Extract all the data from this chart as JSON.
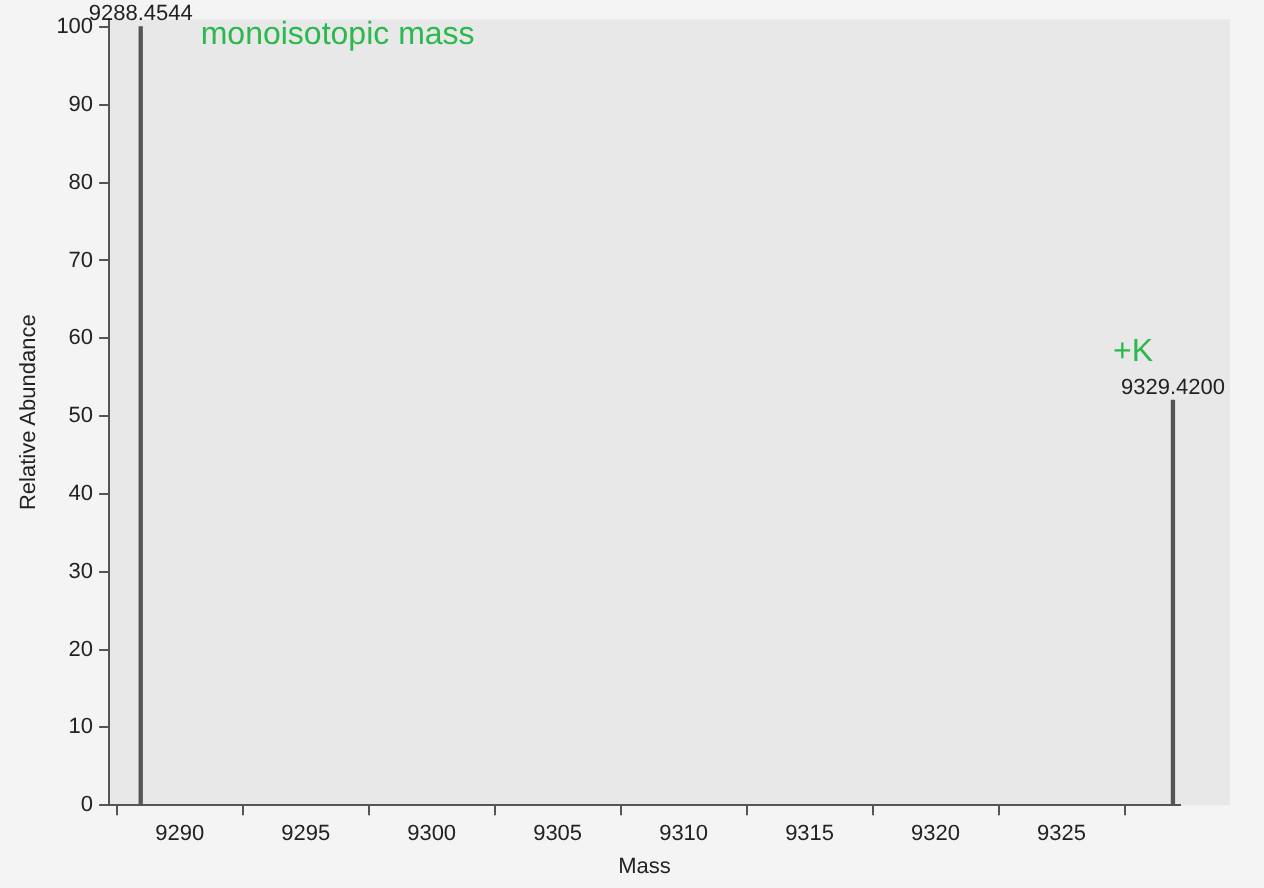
{
  "chart_data": {
    "type": "bar",
    "xlabel": "Mass",
    "ylabel": "Relative Abundance",
    "x": [
      9288.4544,
      9329.42
    ],
    "series": [
      {
        "color": "#555555",
        "values": [
          100,
          52
        ]
      }
    ],
    "xlim": [
      9287.2,
      9329.7
    ],
    "xticks": [
      9290,
      9295,
      9300,
      9305,
      9310,
      9315,
      9320,
      9325
    ],
    "ylim": [
      0,
      101
    ],
    "yticks": [
      0,
      10,
      20,
      30,
      40,
      50,
      60,
      70,
      80,
      90,
      100
    ],
    "annotations": [
      {
        "text": "9288.4544",
        "x": 9288.4544,
        "y": 100
      },
      {
        "text": "9329.4200",
        "x": 9329.42,
        "y": 52
      },
      "monoisotopic mass",
      "+K"
    ],
    "grid": false,
    "legend": false
  }
}
